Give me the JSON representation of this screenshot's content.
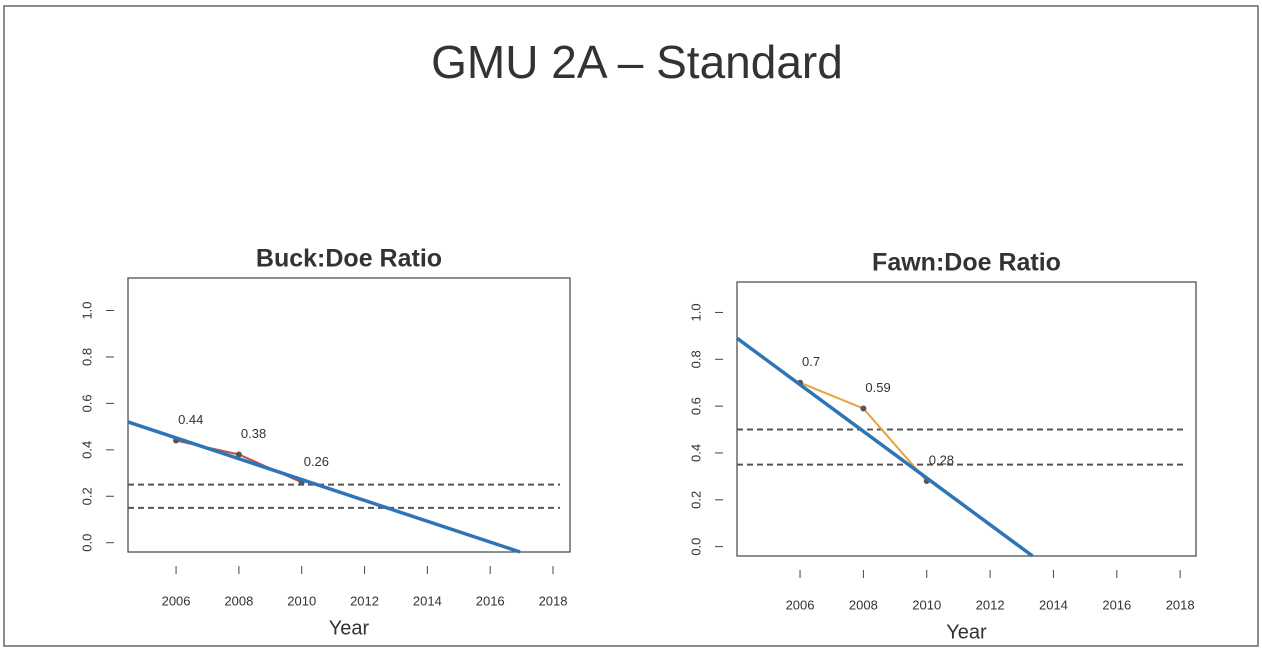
{
  "title": "GMU 2A – Standard",
  "chart_data": [
    {
      "type": "line",
      "title": "Buck:Doe Ratio",
      "xlabel": "Year",
      "x": [
        2006,
        2008,
        2010
      ],
      "series": [
        {
          "color": "#c0504d",
          "values": [
            0.44,
            0.38,
            0.26
          ]
        }
      ],
      "trend": {
        "color": "#2e75b6",
        "x": [
          2004.47,
          2016.95
        ],
        "values": [
          0.52,
          -0.04
        ]
      },
      "hlines": [
        0.25,
        0.15
      ],
      "xlim": [
        2004.47,
        2018.54
      ],
      "ylim": [
        -0.04,
        1.14
      ],
      "xticks": [
        2006,
        2008,
        2010,
        2012,
        2014,
        2016,
        2018
      ],
      "yticks": [
        {
          "value": 0,
          "label": "0.0"
        },
        0.2,
        0.4,
        0.6,
        0.8,
        {
          "value": 1,
          "label": "1.0"
        }
      ]
    },
    {
      "type": "line",
      "title": "Fawn:Doe Ratio",
      "xlabel": "Year",
      "x": [
        2006,
        2008,
        2010
      ],
      "series": [
        {
          "color": "#e8a33a",
          "values": [
            0.7,
            0.59,
            0.28
          ]
        }
      ],
      "trend": {
        "color": "#2e75b6",
        "x": [
          2004.01,
          2013.34
        ],
        "values": [
          0.89,
          -0.04
        ]
      },
      "hlines": [
        0.5,
        0.35
      ],
      "xlim": [
        2004.01,
        2018.5
      ],
      "ylim": [
        -0.04,
        1.13
      ],
      "xticks": [
        2006,
        2008,
        2010,
        2012,
        2014,
        2016,
        2018
      ],
      "yticks": [
        {
          "value": 0,
          "label": "0.0"
        },
        0.2,
        0.4,
        0.6,
        0.8,
        {
          "value": 1,
          "label": "1.0"
        }
      ]
    }
  ]
}
